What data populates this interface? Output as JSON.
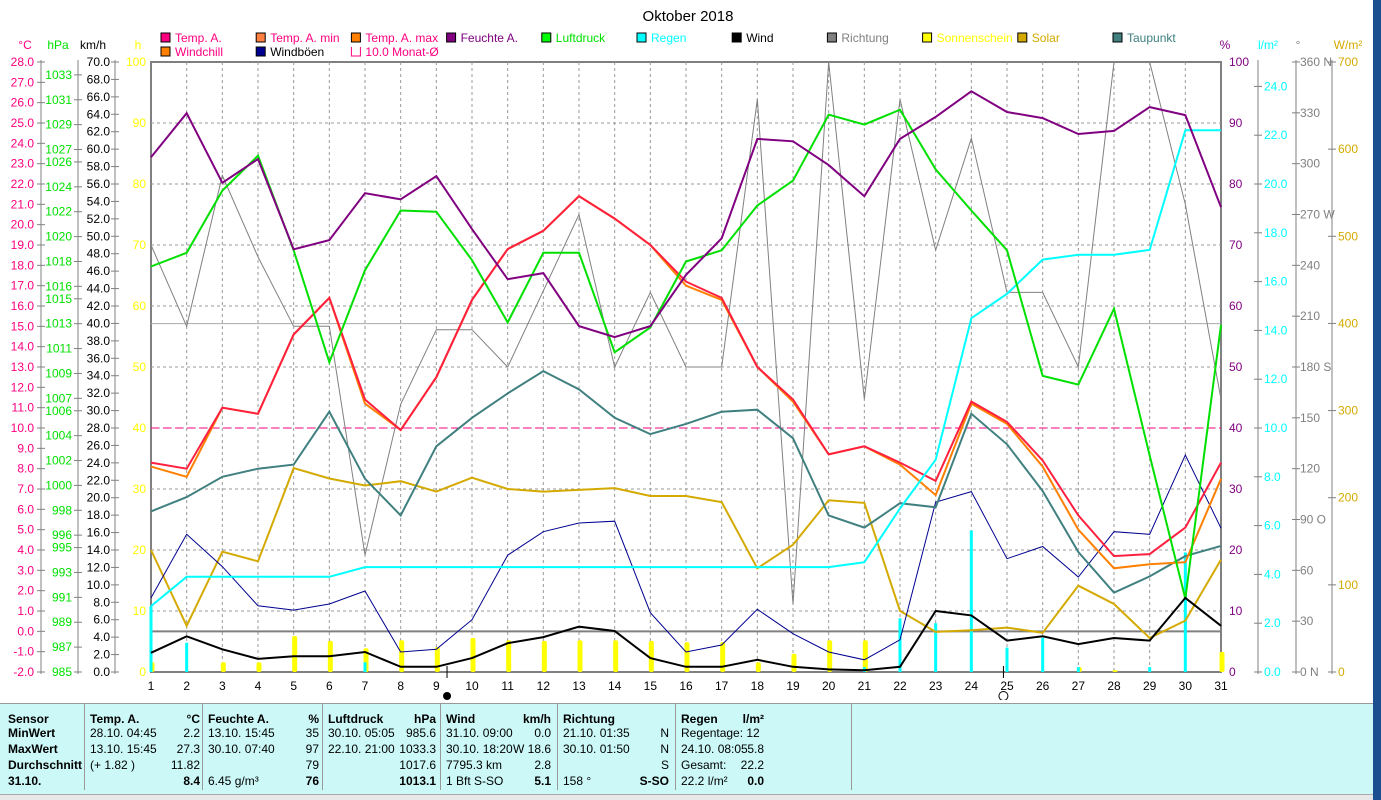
{
  "chart_data": {
    "type": "line",
    "title": "Oktober 2018",
    "x": [
      1,
      2,
      3,
      4,
      5,
      6,
      7,
      8,
      9,
      10,
      11,
      12,
      13,
      14,
      15,
      16,
      17,
      18,
      19,
      20,
      21,
      22,
      23,
      24,
      25,
      26,
      27,
      28,
      29,
      30,
      31
    ],
    "axes": {
      "temp": {
        "unit": "°C",
        "range": [
          -2,
          28
        ],
        "ticks": [
          "28.0",
          "27.0",
          "26.0",
          "25.0",
          "24.0",
          "23.0",
          "22.0",
          "21.0",
          "20.0",
          "19.0",
          "18.0",
          "17.0",
          "16.0",
          "15.0",
          "14.0",
          "13.0",
          "12.0",
          "11.0",
          "10.0",
          "9.0",
          "8.0",
          "7.0",
          "6.0",
          "5.0",
          "4.0",
          "3.0",
          "2.0",
          "1.0",
          "0.0",
          "-1.0",
          "-2.0"
        ]
      },
      "pressure": {
        "unit": "hPa",
        "range": [
          985,
          1033
        ],
        "ticks": [
          "1033",
          "1031",
          "1029",
          "1027",
          "1026",
          "1024",
          "1022",
          "1020",
          "1018",
          "1016",
          "1015",
          "1013",
          "1011",
          "1009",
          "1007",
          "1006",
          "1004",
          "1002",
          "1000",
          "998",
          "996",
          "995",
          "993",
          "991",
          "989",
          "987",
          "985"
        ]
      },
      "wind": {
        "unit": "km/h",
        "range": [
          0,
          70
        ],
        "ticks": [
          "70.0",
          "68.0",
          "66.0",
          "64.0",
          "62.0",
          "60.0",
          "58.0",
          "56.0",
          "54.0",
          "52.0",
          "50.0",
          "48.0",
          "46.0",
          "44.0",
          "42.0",
          "40.0",
          "38.0",
          "36.0",
          "34.0",
          "32.0",
          "30.0",
          "28.0",
          "26.0",
          "24.0",
          "22.0",
          "20.0",
          "18.0",
          "16.0",
          "14.0",
          "12.0",
          "10.0",
          "8.0",
          "6.0",
          "4.0",
          "2.0",
          "0.0"
        ]
      },
      "sun": {
        "unit": "h",
        "range": [
          0,
          100
        ],
        "ticks": [
          "100",
          "90",
          "80",
          "70",
          "60",
          "50",
          "40",
          "30",
          "20",
          "10",
          "0"
        ]
      },
      "humidity": {
        "unit": "%",
        "range": [
          0,
          100
        ],
        "ticks": [
          "100",
          "90",
          "80",
          "70",
          "60",
          "50",
          "40",
          "30",
          "20",
          "10",
          "0"
        ]
      },
      "rain": {
        "unit": "l/m²",
        "range": [
          0,
          25
        ],
        "ticks": [
          "24.0",
          "22.0",
          "20.0",
          "18.0",
          "16.0",
          "14.0",
          "12.0",
          "10.0",
          "8.0",
          "6.0",
          "4.0",
          "2.0",
          "0.0"
        ]
      },
      "direction": {
        "unit": "°",
        "range": [
          0,
          360
        ],
        "ticks": [
          "360 N",
          "330",
          "300",
          "270 W",
          "240",
          "210",
          "180 S",
          "150",
          "120",
          "90  O",
          "60",
          "30",
          "0   N"
        ]
      },
      "solar": {
        "unit": "W/m²",
        "range": [
          0,
          700
        ],
        "ticks": [
          "700",
          "600",
          "500",
          "400",
          "300",
          "200",
          "100",
          "0"
        ]
      }
    },
    "series": [
      {
        "name": "Temp. A.",
        "axis": "temp",
        "color": "#ff2040",
        "values": [
          8.3,
          8.0,
          11.0,
          10.7,
          14.6,
          16.4,
          11.4,
          9.9,
          12.5,
          16.3,
          18.8,
          19.7,
          21.4,
          20.3,
          19.0,
          17.2,
          16.4,
          13.0,
          11.4,
          8.7,
          9.1,
          8.3,
          7.4,
          11.3,
          10.3,
          8.4,
          5.7,
          3.7,
          3.8,
          5.1,
          8.3
        ]
      },
      {
        "name": "Windchill",
        "axis": "temp",
        "color": "#ff8000",
        "values": [
          8.1,
          7.6,
          11.0,
          10.7,
          14.6,
          16.4,
          11.2,
          9.9,
          12.5,
          16.3,
          18.8,
          19.7,
          21.4,
          20.3,
          19.0,
          17.0,
          16.3,
          13.0,
          11.3,
          8.7,
          9.1,
          8.2,
          6.7,
          11.2,
          10.2,
          8.1,
          5.0,
          3.1,
          3.3,
          3.4,
          7.5
        ]
      },
      {
        "name": "Feuchte A.",
        "axis": "humidity",
        "color": "#800080",
        "values": [
          84.4,
          91.6,
          80.2,
          84.1,
          69.3,
          70.8,
          78.5,
          77.5,
          81.3,
          72.6,
          64.4,
          65.4,
          56.7,
          54.9,
          56.7,
          65.1,
          71.1,
          87.4,
          87.0,
          83.1,
          78.0,
          87.4,
          91.0,
          95.2,
          91.8,
          90.8,
          88.2,
          88.7,
          92.6,
          91.3,
          76.2
        ]
      },
      {
        "name": "Luftdruck",
        "axis": "pressure",
        "color": "#00e000",
        "values": [
          1017.6,
          1018.7,
          1023.7,
          1026.5,
          1018.9,
          1009.9,
          1017.3,
          1022.1,
          1022.0,
          1018.1,
          1013.1,
          1018.7,
          1018.7,
          1010.7,
          1012.7,
          1018.0,
          1018.9,
          1022.5,
          1024.5,
          1029.8,
          1029.0,
          1030.2,
          1025.4,
          1022.1,
          1018.9,
          1008.8,
          1008.1,
          1014.2,
          1002.4,
          990.9,
          1012.9
        ]
      },
      {
        "name": "Regen",
        "axis": "rain",
        "color": "#00ffff",
        "values": [
          2.7,
          3.9,
          3.9,
          3.9,
          3.9,
          3.9,
          4.3,
          4.3,
          4.3,
          4.3,
          4.3,
          4.3,
          4.3,
          4.3,
          4.3,
          4.3,
          4.3,
          4.3,
          4.3,
          4.3,
          4.5,
          6.7,
          8.7,
          14.5,
          15.5,
          16.9,
          17.1,
          17.1,
          17.3,
          22.2,
          22.2
        ]
      },
      {
        "name": "Taupunkt",
        "axis": "temp",
        "color": "#408080",
        "values": [
          5.9,
          6.6,
          7.6,
          8.0,
          8.2,
          10.8,
          7.5,
          5.7,
          9.1,
          10.5,
          11.7,
          12.8,
          11.9,
          10.5,
          9.7,
          10.2,
          10.8,
          10.9,
          9.5,
          5.7,
          5.1,
          6.3,
          6.1,
          10.7,
          9.2,
          6.9,
          3.9,
          1.9,
          2.7,
          3.7,
          4.2
        ]
      },
      {
        "name": "Solar",
        "axis": "solar",
        "color": "#d4aa00",
        "values": [
          140,
          53,
          138,
          127,
          234,
          222,
          214,
          219,
          207,
          223,
          210,
          207,
          209,
          211,
          202,
          202,
          195,
          119,
          146,
          197,
          194,
          70,
          46,
          48,
          51,
          45,
          99,
          78,
          39,
          59,
          129
        ]
      },
      {
        "name": "Windböen",
        "axis": "wind",
        "color": "#000090",
        "values": [
          8.5,
          15.8,
          12.1,
          7.6,
          7.1,
          7.8,
          9.3,
          2.3,
          2.6,
          6.0,
          13.4,
          16.1,
          17.1,
          17.3,
          6.8,
          2.3,
          3.1,
          7.2,
          4.4,
          2.3,
          1.4,
          3.7,
          19.5,
          20.7,
          13.0,
          14.4,
          10.9,
          16.1,
          15.8,
          24.9,
          16.5
        ]
      },
      {
        "name": "Wind",
        "axis": "wind",
        "color": "#000000",
        "values": [
          2.2,
          4.1,
          2.6,
          1.5,
          1.8,
          1.8,
          2.3,
          0.6,
          0.6,
          1.6,
          3.3,
          4.0,
          5.2,
          4.7,
          1.6,
          0.6,
          0.6,
          1.4,
          0.6,
          0.3,
          0.2,
          0.6,
          7.0,
          6.5,
          3.6,
          4.1,
          3.2,
          3.9,
          3.6,
          8.5,
          5.3
        ]
      },
      {
        "name": "Richtung",
        "axis": "direction",
        "color": "#808080",
        "values": [
          252,
          204,
          293,
          245,
          204,
          204,
          69,
          158,
          202,
          202,
          180,
          225,
          270,
          180,
          224,
          180,
          180,
          338,
          40,
          360,
          161,
          338,
          249,
          315,
          224,
          224,
          180,
          360,
          360,
          276,
          161
        ]
      }
    ],
    "bars": [
      {
        "name": "Sonnenschein",
        "axis": "sun",
        "color": "#ffff00",
        "values": [
          1.6,
          0,
          1.6,
          1.6,
          5.9,
          5.1,
          3.9,
          5.2,
          4.1,
          5.6,
          5.2,
          5.1,
          5.2,
          5.2,
          5.1,
          4.9,
          4.9,
          1.6,
          3.0,
          5.2,
          5.2,
          0,
          0,
          0,
          0,
          0,
          0.8,
          0.3,
          0,
          0,
          3.3
        ]
      },
      {
        "name": "Regen (Tag)",
        "axis": "rain",
        "color": "#00ffff",
        "values": [
          2.7,
          1.2,
          0,
          0,
          0,
          0,
          0.4,
          0,
          0,
          0,
          0,
          0,
          0,
          0,
          0,
          0,
          0,
          0,
          0,
          0,
          0.2,
          2.2,
          2.0,
          5.8,
          1.0,
          1.4,
          0.2,
          0,
          0.2,
          4.9,
          0
        ]
      }
    ],
    "reference_lines": {
      "monthly_mean_temp": 10.0,
      "pressure_ref": 1013,
      "zero_temp": 0.0
    },
    "moon": {
      "full_day": 9.3,
      "new_day": 24.9
    },
    "legend": [
      {
        "label": "Temp. A.",
        "color": "#ff0080",
        "text_color": "#ff0080"
      },
      {
        "label": "Temp. A. min",
        "color": "#ff8040",
        "text_color": "#ff0080"
      },
      {
        "label": "Temp. A. max",
        "color": "#ff8000",
        "text_color": "#ff0080"
      },
      {
        "label": "Feuchte A.",
        "color": "#800080",
        "text_color": "#800080"
      },
      {
        "label": "Luftdruck",
        "color": "#00ff00",
        "text_color": "#00e000"
      },
      {
        "label": "Regen",
        "color": "#00ffff",
        "text_color": "#00ffff"
      },
      {
        "label": "Wind",
        "color": "#000000",
        "text_color": "#000000"
      },
      {
        "label": "Richtung",
        "color": "#808080",
        "text_color": "#808080"
      },
      {
        "label": "Sonnenschein",
        "color": "#ffff00",
        "text_color": "#ffff00"
      },
      {
        "label": "Solar",
        "color": "#d4aa00",
        "text_color": "#d4aa00"
      },
      {
        "label": "Taupunkt",
        "color": "#408080",
        "text_color": "#408080"
      },
      {
        "label": "Windchill",
        "color": "#ff8000",
        "text_color": "#ff0080"
      },
      {
        "label": "Windböen",
        "color": "#000090",
        "text_color": "#000000"
      },
      {
        "label": "10.0 Monat-Ø",
        "color": "hollow",
        "text_color": "#ff0080"
      }
    ]
  },
  "table": {
    "sensor": {
      "header": "Sensor",
      "rows": [
        "MinWert",
        "MaxWert",
        "Durchschnitt",
        "31.10."
      ]
    },
    "temp": {
      "header": "Temp. A.",
      "unit": "°C",
      "rows": [
        [
          "28.10.  04:45",
          "2.2"
        ],
        [
          "13.10.  15:45",
          "27.3"
        ],
        [
          "(+ 1.82 )",
          "11.82"
        ],
        [
          "",
          "8.4"
        ]
      ]
    },
    "humidity": {
      "header": "Feuchte A.",
      "unit": "%",
      "rows": [
        [
          "13.10.  15:45",
          "35"
        ],
        [
          "30.10.  07:40",
          "97"
        ],
        [
          "",
          "79"
        ],
        [
          "6.45 g/m³",
          "76"
        ]
      ]
    },
    "pressure": {
      "header": "Luftdruck",
      "unit": "hPa",
      "rows": [
        [
          "30.10.  05:05",
          "985.6"
        ],
        [
          "22.10.  21:00",
          "1033.3"
        ],
        [
          "",
          "1017.6"
        ],
        [
          "",
          "1013.1"
        ]
      ]
    },
    "wind": {
      "header": "Wind",
      "unit": "km/h",
      "rows": [
        [
          "31.10.  09:00",
          "0.0"
        ],
        [
          "30.10.  18:20",
          "W 18.6"
        ],
        [
          "7795.3 km",
          "2.8"
        ],
        [
          "1 Bft S-SO",
          "5.1"
        ]
      ]
    },
    "direction": {
      "header": "Richtung",
      "unit": "",
      "rows": [
        [
          "21.10.  01:35",
          "N"
        ],
        [
          "30.10.  01:50",
          "N"
        ],
        [
          "",
          "S"
        ],
        [
          "158 °",
          "S-SO"
        ]
      ]
    },
    "rain": {
      "header": "Regen",
      "unit": "l/m²",
      "rows": [
        [
          "Regentage: 12",
          ""
        ],
        [
          "24.10.  08:05",
          "5.8"
        ],
        [
          "Gesamt:",
          "22.2"
        ],
        [
          "22.2 l/m²",
          "0.0"
        ]
      ]
    }
  }
}
